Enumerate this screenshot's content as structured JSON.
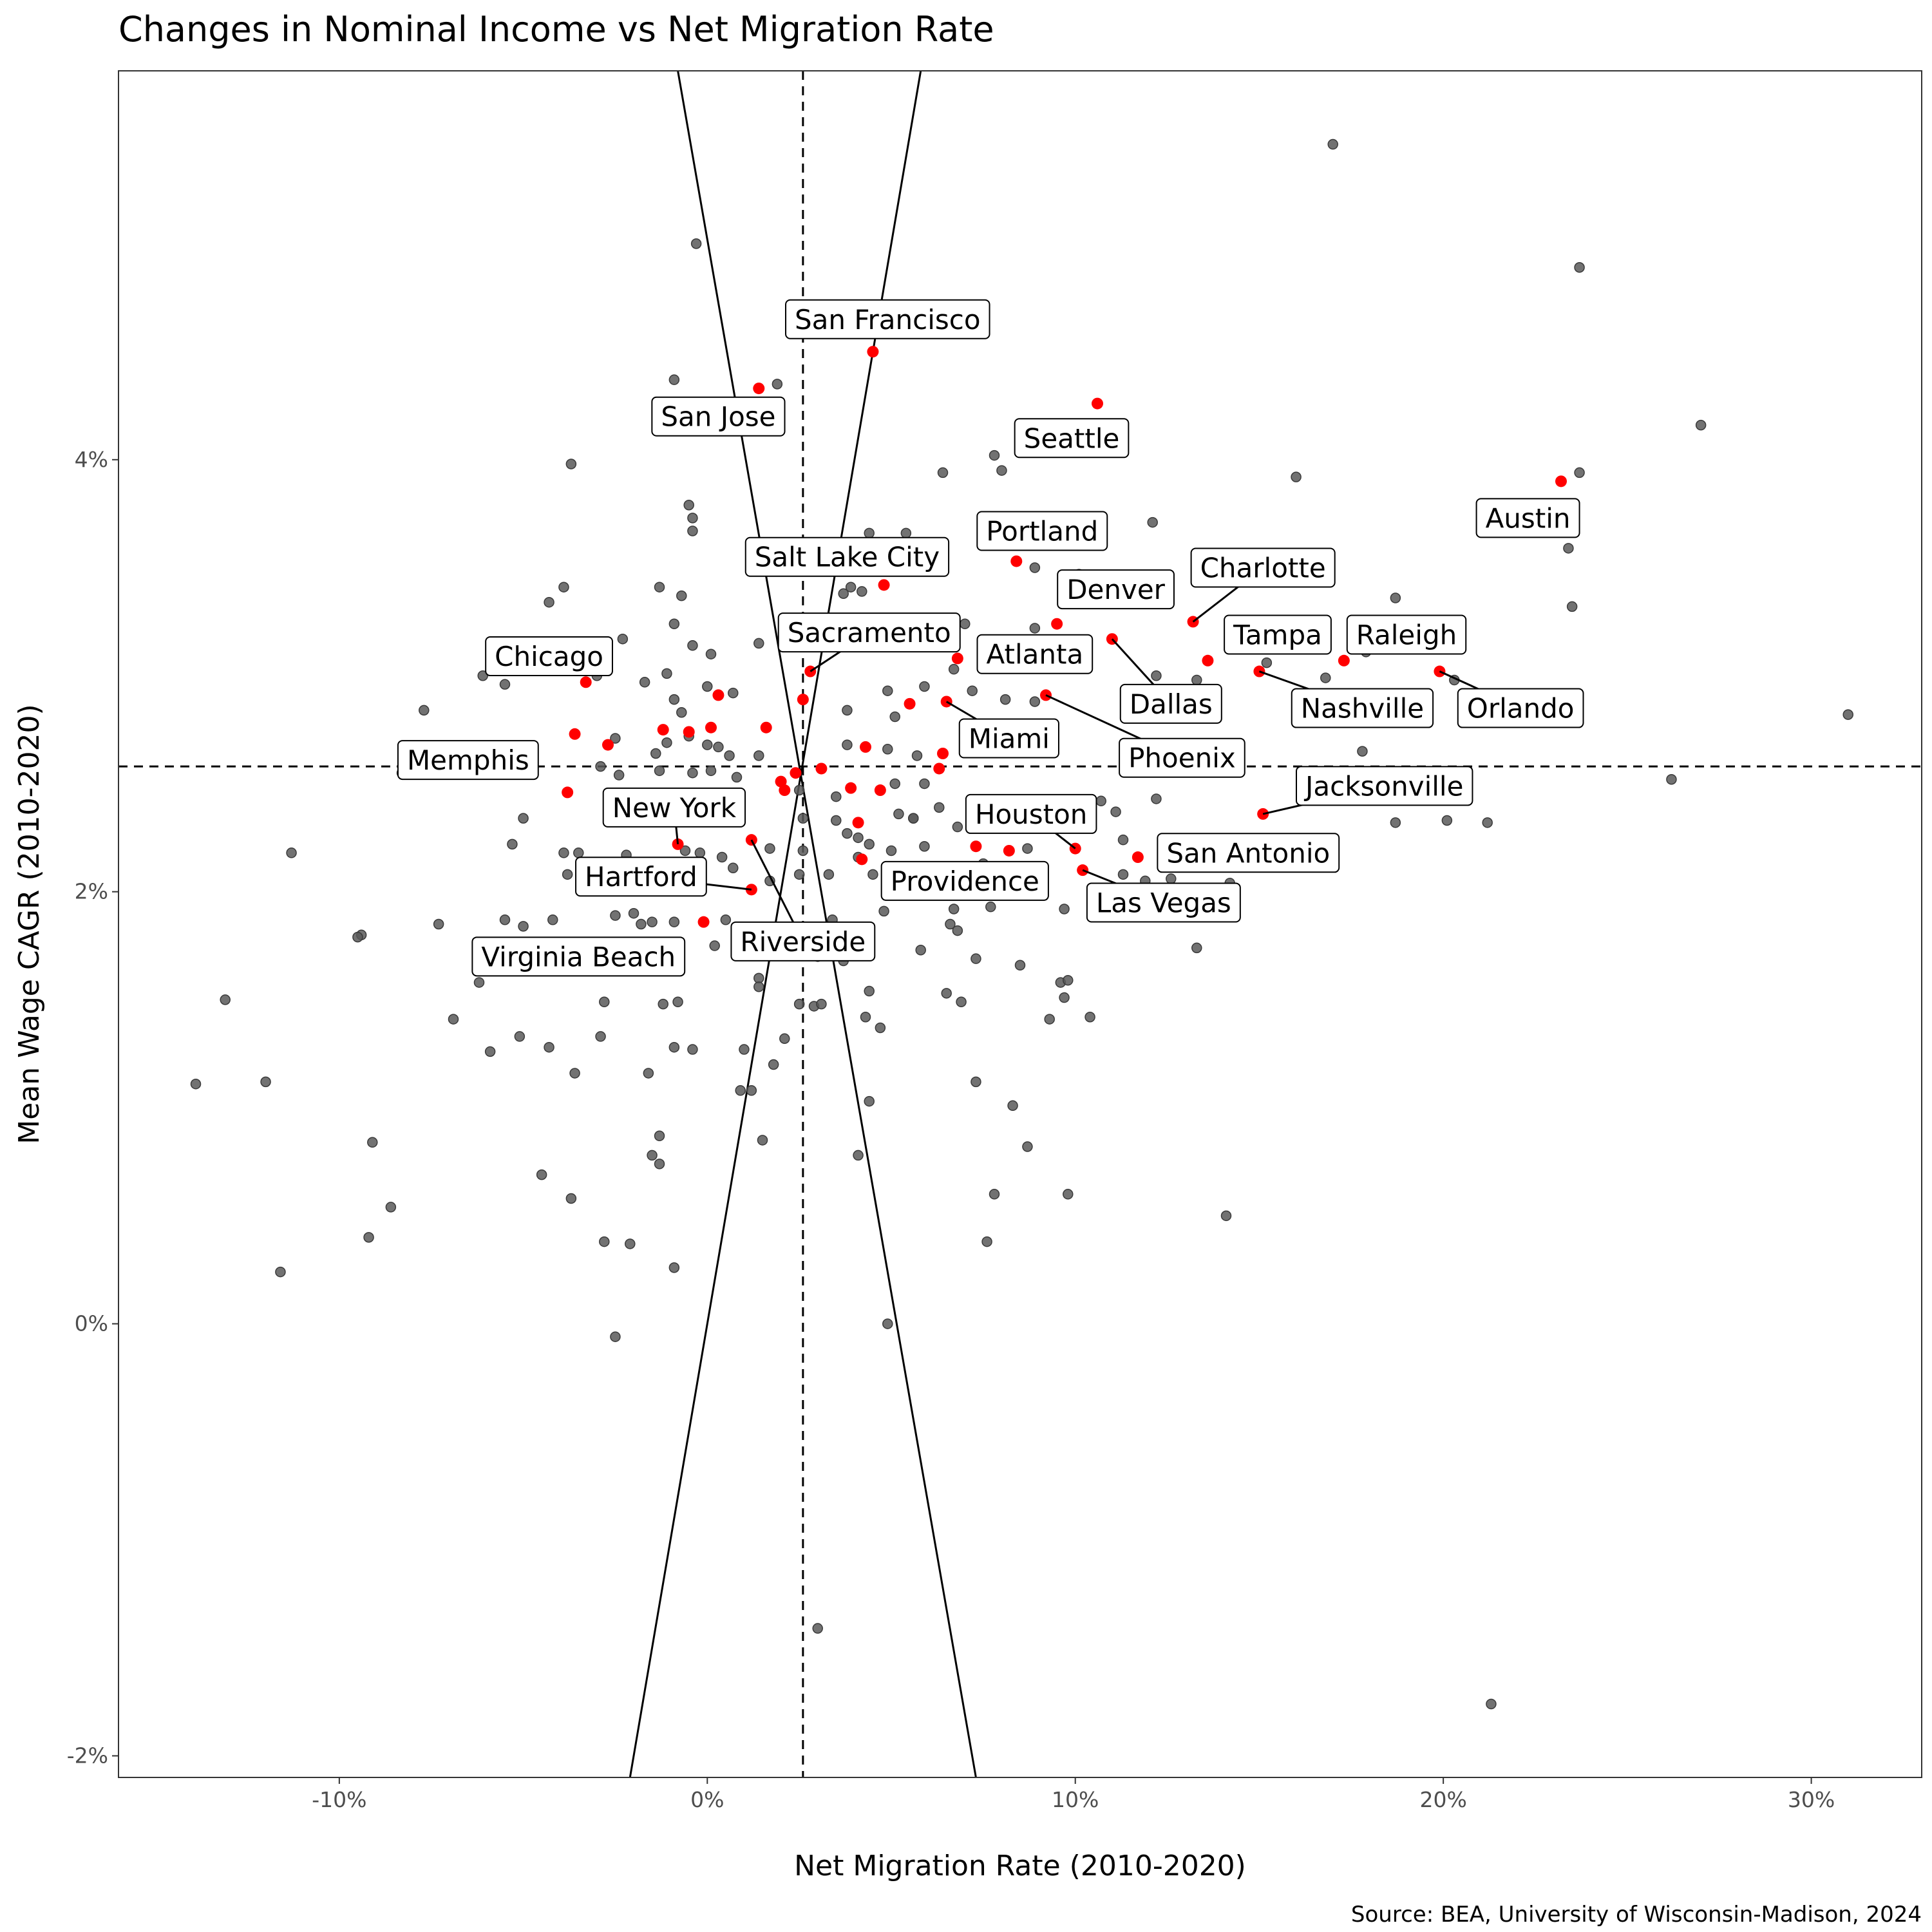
{
  "chart_data": {
    "type": "scatter",
    "title": "Changes in Nominal Income vs Net Migration Rate",
    "xlabel": "Net Migration Rate (2010-2020)",
    "ylabel": "Mean Wage CAGR (2010-2020)",
    "caption": "Source: BEA, University of Wisconsin-Madison, 2024",
    "xlim": [
      -16.0,
      33.0
    ],
    "ylim": [
      -2.1,
      5.8
    ],
    "x_ticks": [
      -10,
      0,
      10,
      20,
      30
    ],
    "x_tick_labels": [
      "-10%",
      "0%",
      "10%",
      "20%",
      "30%"
    ],
    "y_ticks": [
      -2,
      0,
      2,
      4
    ],
    "y_tick_labels": [
      "-2%",
      "0%",
      "2%",
      "4%"
    ],
    "grid": false,
    "reference_lines": {
      "x_mean": 2.6,
      "y_mean": 2.58
    },
    "crossing_lines": [
      {
        "from": [
          -0.8,
          5.8
        ],
        "to": [
          7.3,
          -2.1
        ]
      },
      {
        "from": [
          5.8,
          5.8
        ],
        "to": [
          -2.1,
          -2.1
        ]
      }
    ],
    "colors": {
      "highlight": "#ff0000",
      "other": "#595959"
    },
    "highlighted": [
      {
        "name": "San Francisco",
        "x": 4.5,
        "y": 4.5
      },
      {
        "name": "San Jose",
        "x": 1.4,
        "y": 4.33
      },
      {
        "name": "Seattle",
        "x": 10.6,
        "y": 4.26
      },
      {
        "name": "Austin",
        "x": 23.2,
        "y": 3.9
      },
      {
        "name": "Portland",
        "x": 8.4,
        "y": 3.53
      },
      {
        "name": "Salt Lake City",
        "x": 4.8,
        "y": 3.42
      },
      {
        "name": "Charlotte",
        "x": 13.2,
        "y": 3.25
      },
      {
        "name": "Denver",
        "x": 9.5,
        "y": 3.24
      },
      {
        "name": "Tampa",
        "x": 13.6,
        "y": 3.07
      },
      {
        "name": "Raleigh",
        "x": 17.3,
        "y": 3.07
      },
      {
        "name": "Chicago",
        "x": -3.3,
        "y": 2.97
      },
      {
        "name": "Sacramento",
        "x": 2.8,
        "y": 3.02
      },
      {
        "name": "Atlanta",
        "x": 6.8,
        "y": 3.08
      },
      {
        "name": "Dallas",
        "x": 11.0,
        "y": 3.17
      },
      {
        "name": "Nashville",
        "x": 15.0,
        "y": 3.02
      },
      {
        "name": "Orlando",
        "x": 19.9,
        "y": 3.02
      },
      {
        "name": "Miami",
        "x": 6.5,
        "y": 2.88
      },
      {
        "name": "Phoenix",
        "x": 9.2,
        "y": 2.91
      },
      {
        "name": "Memphis",
        "x": -3.6,
        "y": 2.73
      },
      {
        "name": "Jacksonville",
        "x": 15.1,
        "y": 2.36
      },
      {
        "name": "New York",
        "x": -0.8,
        "y": 2.22
      },
      {
        "name": "Houston",
        "x": 10.0,
        "y": 2.2
      },
      {
        "name": "San Antonio",
        "x": 11.7,
        "y": 2.16
      },
      {
        "name": "Las Vegas",
        "x": 10.2,
        "y": 2.1
      },
      {
        "name": "Hartford",
        "x": 1.2,
        "y": 2.01
      },
      {
        "name": "Providence",
        "x": 4.2,
        "y": 2.15
      },
      {
        "name": "Virginia Beach",
        "x": -0.1,
        "y": 1.86
      },
      {
        "name": "Riverside",
        "x": 1.2,
        "y": 2.24
      },
      {
        "name": "",
        "x": -1.2,
        "y": 2.75
      },
      {
        "name": "",
        "x": -0.5,
        "y": 2.74
      },
      {
        "name": "",
        "x": 0.1,
        "y": 2.76
      },
      {
        "name": "",
        "x": 0.3,
        "y": 2.91
      },
      {
        "name": "",
        "x": 1.6,
        "y": 2.76
      },
      {
        "name": "",
        "x": -2.7,
        "y": 2.68
      },
      {
        "name": "",
        "x": -3.8,
        "y": 2.46
      },
      {
        "name": "",
        "x": 2.0,
        "y": 2.51
      },
      {
        "name": "",
        "x": 2.1,
        "y": 2.47
      },
      {
        "name": "",
        "x": 2.6,
        "y": 2.89
      },
      {
        "name": "",
        "x": 3.1,
        "y": 2.57
      },
      {
        "name": "",
        "x": 3.9,
        "y": 2.48
      },
      {
        "name": "",
        "x": 4.3,
        "y": 2.67
      },
      {
        "name": "",
        "x": 4.7,
        "y": 2.47
      },
      {
        "name": "",
        "x": 5.5,
        "y": 2.87
      },
      {
        "name": "",
        "x": 6.3,
        "y": 2.57
      },
      {
        "name": "",
        "x": 6.4,
        "y": 2.64
      },
      {
        "name": "",
        "x": 7.3,
        "y": 2.21
      },
      {
        "name": "",
        "x": 8.2,
        "y": 2.19
      },
      {
        "name": "",
        "x": 4.1,
        "y": 2.32
      },
      {
        "name": "",
        "x": 2.4,
        "y": 2.55
      }
    ],
    "other_cities": [
      [
        17.0,
        5.46
      ],
      [
        23.7,
        4.89
      ],
      [
        -0.3,
        5.0
      ],
      [
        27.0,
        4.16
      ],
      [
        1.9,
        4.35
      ],
      [
        -0.9,
        4.37
      ],
      [
        23.7,
        3.94
      ],
      [
        16.0,
        3.92
      ],
      [
        6.4,
        3.94
      ],
      [
        7.8,
        4.02
      ],
      [
        8.0,
        3.95
      ],
      [
        -3.7,
        3.98
      ],
      [
        -0.5,
        3.79
      ],
      [
        -0.4,
        3.73
      ],
      [
        -0.4,
        3.67
      ],
      [
        4.4,
        3.66
      ],
      [
        5.4,
        3.66
      ],
      [
        12.1,
        3.71
      ],
      [
        23.4,
        3.59
      ],
      [
        10.1,
        3.47
      ],
      [
        8.9,
        3.5
      ],
      [
        -3.9,
        3.41
      ],
      [
        -4.3,
        3.34
      ],
      [
        -1.3,
        3.41
      ],
      [
        -0.7,
        3.37
      ],
      [
        3.7,
        3.38
      ],
      [
        3.9,
        3.41
      ],
      [
        4.2,
        3.39
      ],
      [
        18.7,
        3.36
      ],
      [
        23.5,
        3.32
      ],
      [
        -0.9,
        3.24
      ],
      [
        1.4,
        3.15
      ],
      [
        -0.4,
        3.14
      ],
      [
        0.1,
        3.1
      ],
      [
        7.0,
        3.24
      ],
      [
        8.9,
        3.22
      ],
      [
        -2.3,
        3.17
      ],
      [
        -6.1,
        3.0
      ],
      [
        -5.5,
        2.96
      ],
      [
        -3.0,
        3.0
      ],
      [
        -1.7,
        2.97
      ],
      [
        -1.1,
        3.01
      ],
      [
        12.2,
        3.0
      ],
      [
        13.3,
        2.98
      ],
      [
        15.2,
        3.06
      ],
      [
        16.8,
        2.99
      ],
      [
        17.9,
        3.11
      ],
      [
        20.3,
        2.98
      ],
      [
        -7.7,
        2.84
      ],
      [
        -0.9,
        2.89
      ],
      [
        -0.7,
        2.83
      ],
      [
        0.0,
        2.95
      ],
      [
        0.7,
        2.92
      ],
      [
        4.9,
        2.93
      ],
      [
        5.9,
        2.95
      ],
      [
        6.7,
        3.03
      ],
      [
        7.2,
        2.93
      ],
      [
        8.1,
        2.89
      ],
      [
        8.9,
        2.88
      ],
      [
        -2.5,
        2.71
      ],
      [
        -1.4,
        2.64
      ],
      [
        -1.1,
        2.69
      ],
      [
        -0.5,
        2.72
      ],
      [
        0.0,
        2.68
      ],
      [
        0.3,
        2.67
      ],
      [
        0.6,
        2.63
      ],
      [
        1.4,
        2.63
      ],
      [
        3.8,
        2.84
      ],
      [
        3.8,
        2.68
      ],
      [
        4.9,
        2.66
      ],
      [
        5.1,
        2.81
      ],
      [
        5.7,
        2.63
      ],
      [
        9.4,
        2.72
      ],
      [
        17.8,
        2.65
      ],
      [
        -8.3,
        2.55
      ],
      [
        -2.9,
        2.58
      ],
      [
        -2.4,
        2.54
      ],
      [
        -1.3,
        2.56
      ],
      [
        -0.4,
        2.55
      ],
      [
        0.1,
        2.56
      ],
      [
        0.8,
        2.53
      ],
      [
        2.5,
        2.47
      ],
      [
        3.5,
        2.44
      ],
      [
        5.1,
        2.5
      ],
      [
        5.9,
        2.5
      ],
      [
        11.1,
        2.37
      ],
      [
        12.2,
        2.43
      ],
      [
        13.1,
        2.56
      ],
      [
        26.2,
        2.52
      ],
      [
        -5.0,
        2.34
      ],
      [
        -1.6,
        2.43
      ],
      [
        -0.2,
        2.42
      ],
      [
        0.3,
        2.36
      ],
      [
        2.6,
        2.34
      ],
      [
        3.5,
        2.33
      ],
      [
        4.1,
        2.25
      ],
      [
        5.2,
        2.36
      ],
      [
        5.6,
        2.34
      ],
      [
        6.3,
        2.39
      ],
      [
        6.8,
        2.3
      ],
      [
        9.7,
        2.33
      ],
      [
        10.7,
        2.42
      ],
      [
        18.7,
        2.32
      ],
      [
        20.1,
        2.33
      ],
      [
        21.2,
        2.32
      ],
      [
        -11.3,
        2.18
      ],
      [
        -5.3,
        2.22
      ],
      [
        -3.9,
        2.18
      ],
      [
        -3.5,
        2.18
      ],
      [
        -2.2,
        2.17
      ],
      [
        -0.6,
        2.19
      ],
      [
        -0.2,
        2.18
      ],
      [
        0.4,
        2.16
      ],
      [
        1.7,
        2.2
      ],
      [
        2.6,
        2.19
      ],
      [
        3.8,
        2.27
      ],
      [
        4.1,
        2.16
      ],
      [
        4.4,
        2.22
      ],
      [
        5.0,
        2.19
      ],
      [
        5.9,
        2.21
      ],
      [
        7.5,
        2.13
      ],
      [
        8.7,
        2.2
      ],
      [
        11.3,
        2.24
      ],
      [
        -3.8,
        2.08
      ],
      [
        -2.6,
        2.1
      ],
      [
        -1.8,
        2.07
      ],
      [
        -0.3,
        2.06
      ],
      [
        0.7,
        2.11
      ],
      [
        1.7,
        2.05
      ],
      [
        2.5,
        2.08
      ],
      [
        3.3,
        2.08
      ],
      [
        4.5,
        2.08
      ],
      [
        5.3,
        2.05
      ],
      [
        7.4,
        2.08
      ],
      [
        9.0,
        2.09
      ],
      [
        11.3,
        2.08
      ],
      [
        11.9,
        2.05
      ],
      [
        12.6,
        2.06
      ],
      [
        14.2,
        2.04
      ],
      [
        -9.4,
        1.8
      ],
      [
        -9.5,
        1.79
      ],
      [
        -7.3,
        1.85
      ],
      [
        -5.5,
        1.87
      ],
      [
        -5.0,
        1.84
      ],
      [
        -4.2,
        1.87
      ],
      [
        -2.5,
        1.89
      ],
      [
        -2.0,
        1.9
      ],
      [
        -1.8,
        1.85
      ],
      [
        -1.5,
        1.86
      ],
      [
        -0.9,
        1.86
      ],
      [
        0.5,
        1.87
      ],
      [
        2.2,
        1.82
      ],
      [
        3.4,
        1.87
      ],
      [
        4.8,
        1.91
      ],
      [
        6.6,
        1.85
      ],
      [
        6.7,
        1.92
      ],
      [
        6.8,
        1.82
      ],
      [
        7.7,
        1.93
      ],
      [
        9.7,
        1.92
      ],
      [
        13.3,
        1.74
      ],
      [
        -6.2,
        1.58
      ],
      [
        -5.8,
        1.66
      ],
      [
        -3.4,
        1.73
      ],
      [
        -1.7,
        1.74
      ],
      [
        -1.2,
        1.7
      ],
      [
        -1.0,
        1.65
      ],
      [
        0.2,
        1.75
      ],
      [
        1.0,
        1.71
      ],
      [
        1.4,
        1.6
      ],
      [
        2.8,
        1.72
      ],
      [
        3.0,
        1.7
      ],
      [
        3.7,
        1.68
      ],
      [
        5.8,
        1.73
      ],
      [
        7.3,
        1.69
      ],
      [
        8.5,
        1.66
      ],
      [
        9.6,
        1.58
      ],
      [
        9.8,
        1.59
      ],
      [
        -13.1,
        1.5
      ],
      [
        -6.9,
        1.41
      ],
      [
        -5.1,
        1.33
      ],
      [
        -2.8,
        1.49
      ],
      [
        -1.2,
        1.48
      ],
      [
        -0.8,
        1.49
      ],
      [
        2.5,
        1.48
      ],
      [
        2.9,
        1.47
      ],
      [
        3.1,
        1.48
      ],
      [
        4.3,
        1.42
      ],
      [
        4.4,
        1.54
      ],
      [
        4.7,
        1.37
      ],
      [
        6.5,
        1.53
      ],
      [
        6.9,
        1.49
      ],
      [
        9.3,
        1.41
      ],
      [
        9.7,
        1.51
      ],
      [
        10.4,
        1.42
      ],
      [
        -5.9,
        1.26
      ],
      [
        -4.3,
        1.28
      ],
      [
        -3.6,
        1.16
      ],
      [
        -2.9,
        1.33
      ],
      [
        -0.9,
        1.28
      ],
      [
        -0.4,
        1.27
      ],
      [
        1.0,
        1.27
      ],
      [
        1.4,
        1.56
      ],
      [
        2.1,
        1.32
      ],
      [
        -13.9,
        1.11
      ],
      [
        -12.0,
        1.12
      ],
      [
        -1.6,
        1.16
      ],
      [
        0.9,
        1.08
      ],
      [
        1.2,
        1.08
      ],
      [
        1.8,
        1.2
      ],
      [
        4.4,
        1.03
      ],
      [
        7.3,
        1.12
      ],
      [
        8.3,
        1.01
      ],
      [
        -9.1,
        0.84
      ],
      [
        -1.3,
        0.87
      ],
      [
        -1.3,
        0.74
      ],
      [
        -1.5,
        0.78
      ],
      [
        1.5,
        0.85
      ],
      [
        4.1,
        0.78
      ],
      [
        8.7,
        0.82
      ],
      [
        -4.5,
        0.69
      ],
      [
        -3.7,
        0.58
      ],
      [
        -8.6,
        0.54
      ],
      [
        7.8,
        0.6
      ],
      [
        9.8,
        0.6
      ],
      [
        14.1,
        0.5
      ],
      [
        -9.2,
        0.4
      ],
      [
        -2.8,
        0.38
      ],
      [
        -2.1,
        0.37
      ],
      [
        7.6,
        0.38
      ],
      [
        -11.6,
        0.24
      ],
      [
        -0.9,
        0.26
      ],
      [
        -2.5,
        -0.06
      ],
      [
        4.9,
        0.0
      ],
      [
        3.0,
        -1.41
      ],
      [
        21.3,
        -1.76
      ],
      [
        31.0,
        2.82
      ],
      [
        5.6,
        2.34
      ],
      [
        6.3,
        3.15
      ]
    ],
    "annotations": [
      {
        "text": "San Francisco",
        "box": [
          4.9,
          4.65
        ],
        "leader": false
      },
      {
        "text": "San Jose",
        "box": [
          0.3,
          4.2
        ],
        "leader": false
      },
      {
        "text": "Seattle",
        "box": [
          9.9,
          4.1
        ],
        "leader": false
      },
      {
        "text": "Austin",
        "box": [
          22.3,
          3.73
        ],
        "leader": false
      },
      {
        "text": "Portland",
        "box": [
          9.1,
          3.67
        ],
        "leader": false
      },
      {
        "text": "Salt Lake City",
        "box": [
          3.8,
          3.55
        ],
        "leader": false
      },
      {
        "text": "Charlotte",
        "box": [
          15.1,
          3.5
        ],
        "leader": true
      },
      {
        "text": "Denver",
        "box": [
          11.1,
          3.4
        ],
        "leader": false
      },
      {
        "text": "Tampa",
        "box": [
          15.5,
          3.19
        ],
        "leader": false
      },
      {
        "text": "Raleigh",
        "box": [
          19.0,
          3.19
        ],
        "leader": false
      },
      {
        "text": "Chicago",
        "box": [
          -4.3,
          3.09
        ],
        "leader": false
      },
      {
        "text": "Sacramento",
        "box": [
          4.4,
          3.2
        ],
        "leader": true
      },
      {
        "text": "Atlanta",
        "box": [
          8.9,
          3.1
        ],
        "leader": false
      },
      {
        "text": "Dallas",
        "box": [
          12.6,
          2.87
        ],
        "leader": true
      },
      {
        "text": "Nashville",
        "box": [
          17.8,
          2.85
        ],
        "leader": true
      },
      {
        "text": "Orlando",
        "box": [
          22.1,
          2.85
        ],
        "leader": true
      },
      {
        "text": "Miami",
        "box": [
          8.2,
          2.71
        ],
        "leader": true
      },
      {
        "text": "Phoenix",
        "box": [
          12.9,
          2.62
        ],
        "leader": true
      },
      {
        "text": "Memphis",
        "box": [
          -6.5,
          2.61
        ],
        "leader": false
      },
      {
        "text": "Jacksonville",
        "box": [
          18.4,
          2.49
        ],
        "leader": true
      },
      {
        "text": "New York",
        "box": [
          -0.9,
          2.39
        ],
        "leader": true
      },
      {
        "text": "Houston",
        "box": [
          8.8,
          2.36
        ],
        "leader": true
      },
      {
        "text": "San Antonio",
        "box": [
          14.7,
          2.18
        ],
        "leader": false
      },
      {
        "text": "Las Vegas",
        "box": [
          12.4,
          1.95
        ],
        "leader": true
      },
      {
        "text": "Hartford",
        "box": [
          -1.8,
          2.07
        ],
        "leader": true
      },
      {
        "text": "Providence",
        "box": [
          7.0,
          2.05
        ],
        "leader": false
      },
      {
        "text": "Virginia Beach",
        "box": [
          -3.5,
          1.7
        ],
        "leader": false
      },
      {
        "text": "Riverside",
        "box": [
          2.6,
          1.77
        ],
        "leader": true
      }
    ]
  }
}
